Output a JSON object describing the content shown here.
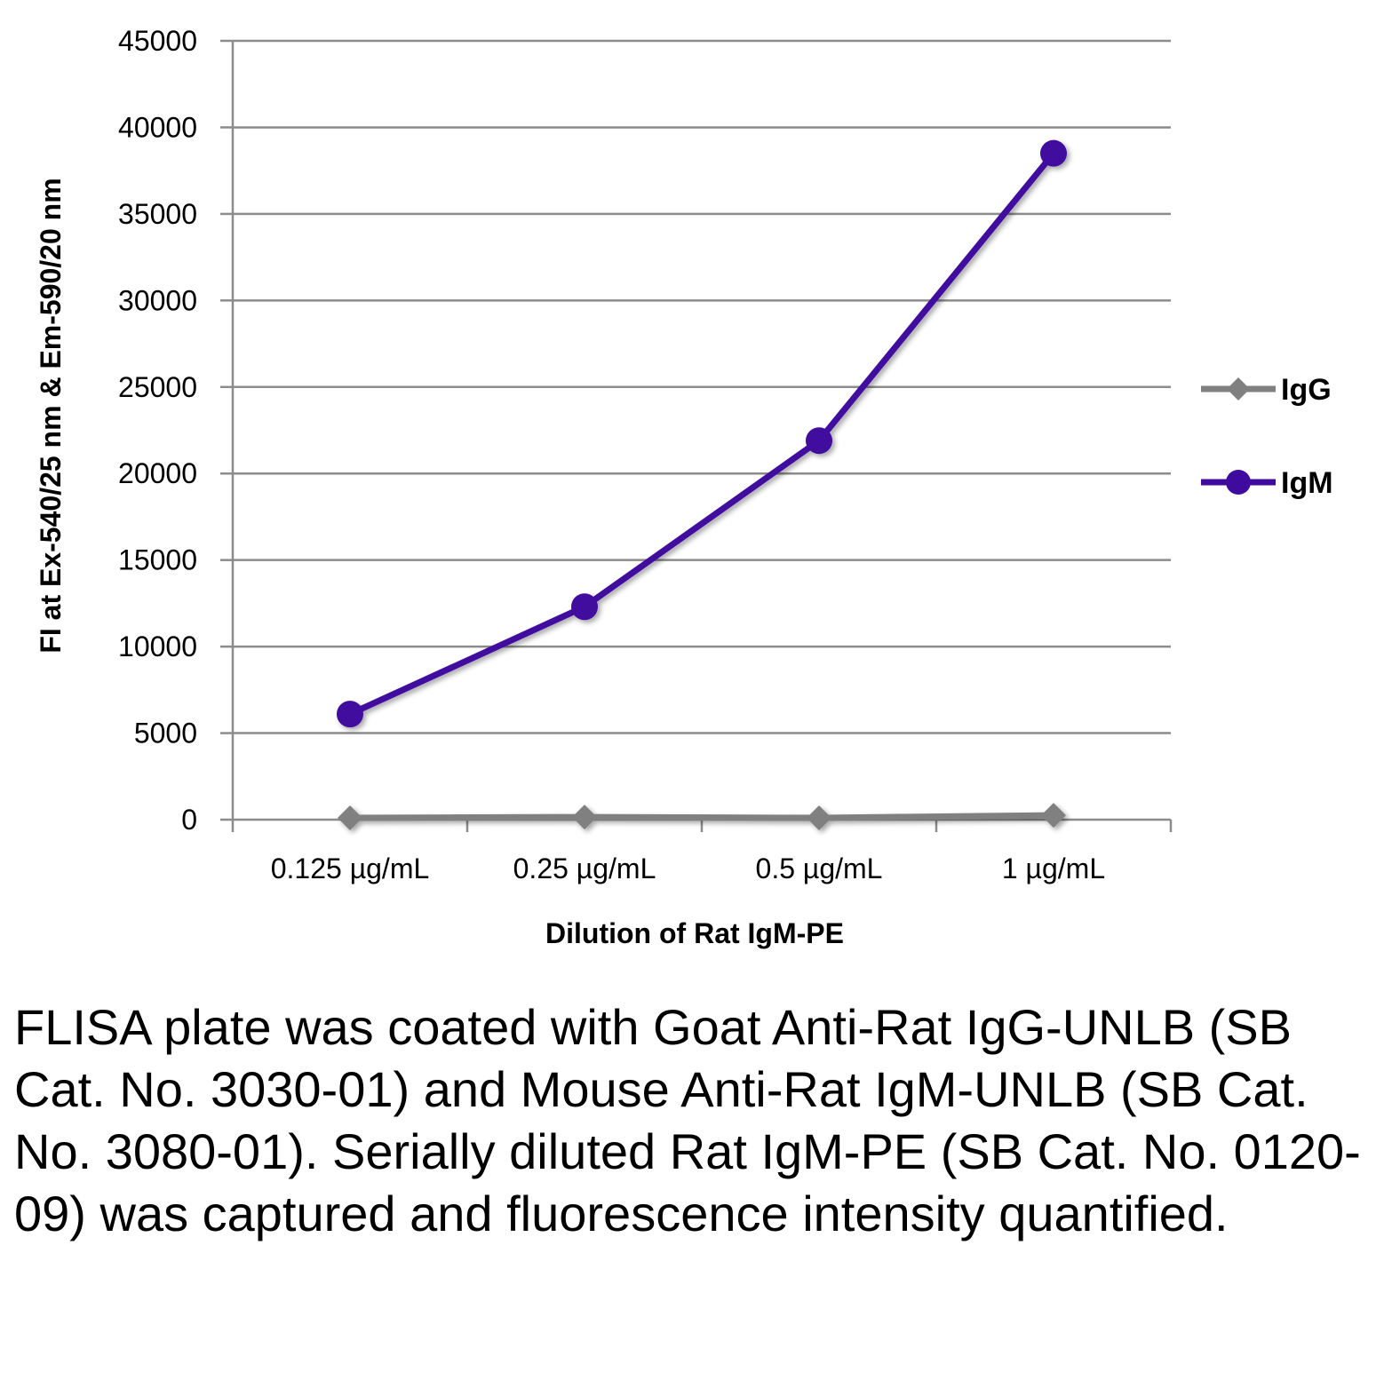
{
  "chart_data": {
    "type": "line",
    "categories": [
      "0.125 µg/mL",
      "0.25 µg/mL",
      "0.5 µg/mL",
      "1 µg/mL"
    ],
    "series": [
      {
        "name": "IgG",
        "values": [
          100,
          150,
          100,
          250
        ],
        "color": "#808080",
        "marker": "diamond"
      },
      {
        "name": "IgM",
        "values": [
          6100,
          12300,
          21900,
          38500
        ],
        "color": "#3f0a9e",
        "marker": "circle"
      }
    ],
    "xlabel": "Dilution of Rat IgM-PE",
    "ylabel": "FI at Ex-540/25 nm & Em-590/20 nm",
    "ylim": [
      0,
      45000
    ],
    "yticks": [
      0,
      5000,
      10000,
      15000,
      20000,
      25000,
      30000,
      35000,
      40000,
      45000
    ],
    "grid": true,
    "legend": "right"
  },
  "caption": "FLISA plate was coated with Goat Anti-Rat IgG-UNLB (SB Cat. No. 3030-01) and Mouse Anti-Rat IgM-UNLB (SB Cat. No. 3080-01). Serially diluted Rat IgM-PE (SB Cat. No. 0120-09) was captured and fluorescence intensity quantified."
}
